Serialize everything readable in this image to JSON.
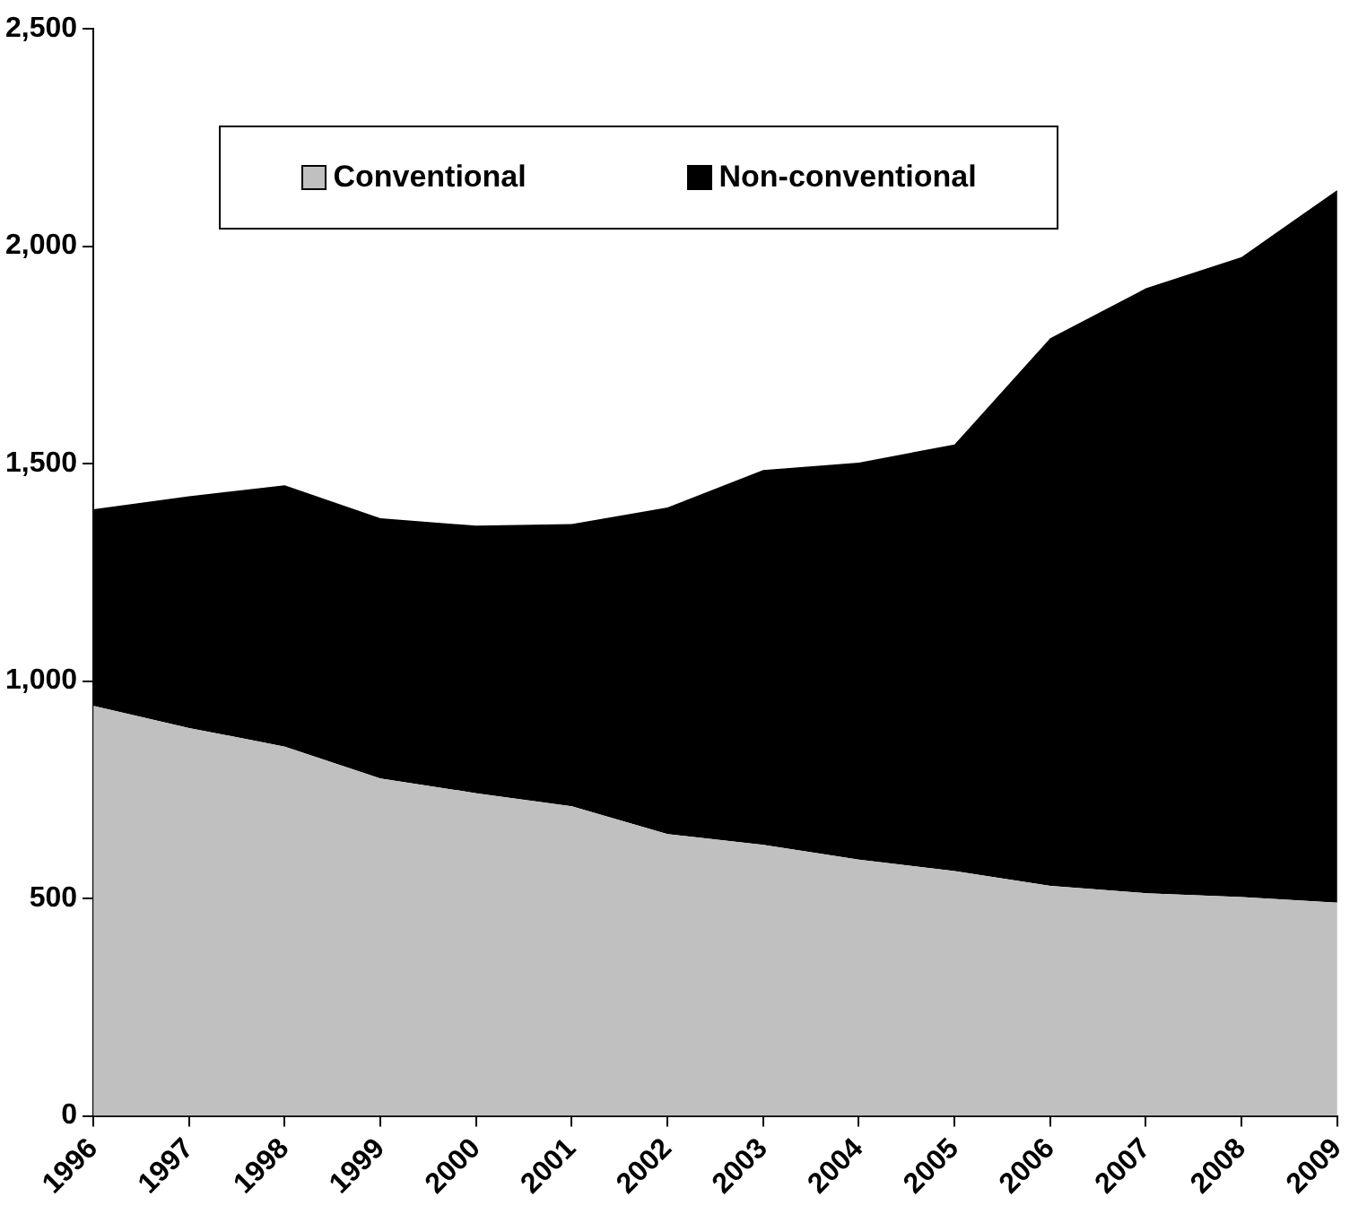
{
  "chart_data": {
    "type": "area",
    "stacked": true,
    "categories": [
      "1996",
      "1997",
      "1998",
      "1999",
      "2000",
      "2001",
      "2002",
      "2003",
      "2004",
      "2005",
      "2006",
      "2007",
      "2008",
      "2009"
    ],
    "series": [
      {
        "name": "Conventional",
        "color": "#c0c0c0",
        "values": [
          943,
          892,
          849,
          776,
          742,
          712,
          648,
          623,
          589,
          563,
          529,
          512,
          503,
          490
        ]
      },
      {
        "name": "Non-conventional",
        "color": "#000000",
        "values": [
          452,
          533,
          601,
          598,
          615,
          649,
          751,
          862,
          913,
          981,
          1259,
          1391,
          1472,
          1639
        ]
      }
    ],
    "ylim": [
      0,
      2500
    ],
    "yticks": [
      {
        "value": 0,
        "label": "0"
      },
      {
        "value": 500,
        "label": "500"
      },
      {
        "value": 1000,
        "label": "1,000"
      },
      {
        "value": 1500,
        "label": "1,500"
      },
      {
        "value": 2000,
        "label": "2,000"
      },
      {
        "value": 2500,
        "label": "2,500"
      }
    ],
    "grid": false,
    "legend": "top left"
  }
}
